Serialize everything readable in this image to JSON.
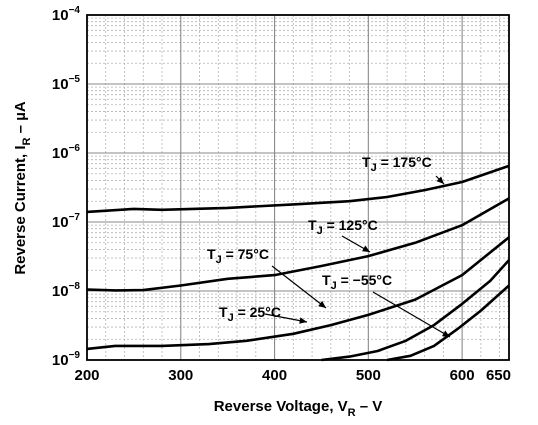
{
  "chart_data": {
    "type": "line",
    "xlabel": {
      "main": "Reverse Voltage, V",
      "sub": "R",
      "suffix": " – V"
    },
    "ylabel": {
      "main": "Reverse Current, I",
      "sub": "R",
      "suffix": " – µA"
    },
    "x_scale": "linear",
    "y_scale": "log",
    "xlim": [
      200,
      650
    ],
    "ylim": [
      1e-09,
      0.0001
    ],
    "grid": true,
    "x_ticks": [
      {
        "value": 200,
        "label": "200"
      },
      {
        "value": 300,
        "label": "300"
      },
      {
        "value": 400,
        "label": "400"
      },
      {
        "value": 500,
        "label": "500"
      },
      {
        "value": 600,
        "label": "600"
      },
      {
        "value": 650,
        "label": "650"
      }
    ],
    "y_ticks": [
      {
        "value": 0.0001,
        "base": "10",
        "exp": "−4"
      },
      {
        "value": 1e-05,
        "base": "10",
        "exp": "−5"
      },
      {
        "value": 1e-06,
        "base": "10",
        "exp": "−6"
      },
      {
        "value": 1e-07,
        "base": "10",
        "exp": "−7"
      },
      {
        "value": 1e-08,
        "base": "10",
        "exp": "−8"
      },
      {
        "value": 1e-09,
        "base": "10",
        "exp": "−9"
      }
    ],
    "series": [
      {
        "name": "T_J = 175°C",
        "label": {
          "prefix": "T",
          "sub": "J",
          "rest": " = 175°C"
        },
        "x": [
          200,
          250,
          280,
          350,
          420,
          480,
          520,
          560,
          600,
          650
        ],
        "y": [
          1.4e-07,
          1.55e-07,
          1.5e-07,
          1.6e-07,
          1.8e-07,
          2e-07,
          2.3e-07,
          2.9e-07,
          3.8e-07,
          6.5e-07
        ]
      },
      {
        "name": "T_J = 125°C",
        "label": {
          "prefix": "T",
          "sub": "J",
          "rest": " = 125°C"
        },
        "x": [
          200,
          230,
          260,
          300,
          350,
          400,
          450,
          500,
          550,
          600,
          650
        ],
        "y": [
          1.05e-08,
          1.02e-08,
          1.03e-08,
          1.2e-08,
          1.5e-08,
          1.7e-08,
          2.3e-08,
          3.2e-08,
          5e-08,
          9e-08,
          2.2e-07
        ]
      },
      {
        "name": "T_J = 75°C",
        "label": {
          "prefix": "T",
          "sub": "J",
          "rest": " = 75°C"
        },
        "x": [
          200,
          230,
          280,
          330,
          370,
          420,
          460,
          500,
          550,
          600,
          650
        ],
        "y": [
          1.45e-09,
          1.6e-09,
          1.6e-09,
          1.7e-09,
          1.9e-09,
          2.4e-09,
          3.2e-09,
          4.5e-09,
          7.5e-09,
          1.7e-08,
          6e-08
        ]
      },
      {
        "name": "T_J = 25°C",
        "label": {
          "prefix": "T",
          "sub": "J",
          "rest": " = 25°C"
        },
        "x": [
          450,
          480,
          510,
          540,
          570,
          600,
          630,
          650
        ],
        "y": [
          1e-09,
          1.12e-09,
          1.35e-09,
          1.9e-09,
          3.2e-09,
          6.5e-09,
          1.4e-08,
          2.8e-08
        ]
      },
      {
        "name": "T_J = −55°C",
        "label": {
          "prefix": "T",
          "sub": "J",
          "rest": " = −55°C"
        },
        "x": [
          520,
          545,
          570,
          595,
          620,
          650
        ],
        "y": [
          1e-09,
          1.15e-09,
          1.6e-09,
          2.8e-09,
          5.2e-09,
          1.2e-08
        ]
      }
    ]
  }
}
